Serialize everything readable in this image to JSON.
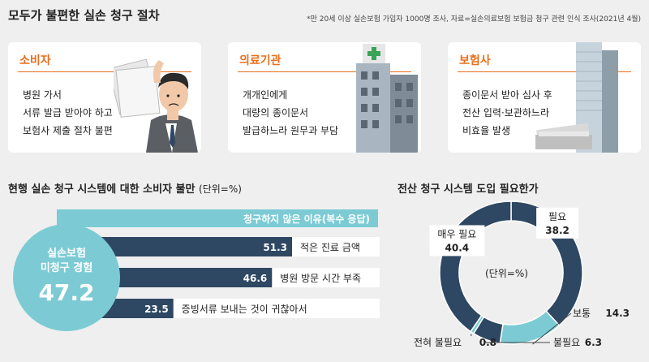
{
  "header": {
    "title": "모두가 불편한 실손 청구 절차",
    "note": "*만 20세 이상 실손보험 가입자 1000명 조사, 자료=실손의료보험 보험금 청구 관련 인식 조사(2021년 4월)"
  },
  "cards": [
    {
      "title": "소비자",
      "lines": [
        "병원 가서",
        "서류 발급 받아야 하고",
        "보험사 제출 절차 불편"
      ]
    },
    {
      "title": "의료기관",
      "lines": [
        "개개인에게",
        "대량의 종이문서",
        "발급하느라 원무과 부담"
      ]
    },
    {
      "title": "보험사",
      "lines": [
        "종이문서 받아 심사 후",
        "전산 입력·보관하느라",
        "비효율 발생"
      ]
    }
  ],
  "colors": {
    "accent": "#e86f1c",
    "navy": "#2e4763",
    "teal": "#7ccbd4",
    "card_bg": "#ffffff",
    "page_bg": "#efefef"
  },
  "chart_data": [
    {
      "type": "bar",
      "title": "현행 실손 청구 시스템에 대한 소비자 불만",
      "unit_label": "(단위=%)",
      "header_label": "청구하지 않은 이유(복수 응답)",
      "summary": {
        "label_line1": "실손보험",
        "label_line2": "미청구 경험",
        "value": 47.2
      },
      "categories": [
        "적은 진료 금액",
        "병원 방문 시간 부족",
        "증빙서류 보내는 것이 귀찮아서"
      ],
      "values": [
        51.3,
        46.6,
        23.5
      ],
      "value_labels": [
        "51.3",
        "46.6",
        "23.5"
      ],
      "xlim": [
        0,
        100
      ]
    },
    {
      "type": "pie",
      "title": "전산 청구 시스템 도입 필요한가",
      "unit_label": "(단위=%)",
      "slices": [
        {
          "label": "필요",
          "value": 38.2,
          "value_label": "38.2",
          "color": "#2e4763"
        },
        {
          "label": "보통",
          "value": 14.3,
          "value_label": "14.3",
          "color": "#7ccbd4"
        },
        {
          "label": "불필요",
          "value": 6.3,
          "value_label": "6.3",
          "color": "#2e4763"
        },
        {
          "label": "전혀 불필요",
          "value": 0.8,
          "value_label": "0.8",
          "color": "#7ccbd4"
        },
        {
          "label": "매우 필요",
          "value": 40.4,
          "value_label": "40.4",
          "color": "#2e4763"
        }
      ]
    }
  ]
}
